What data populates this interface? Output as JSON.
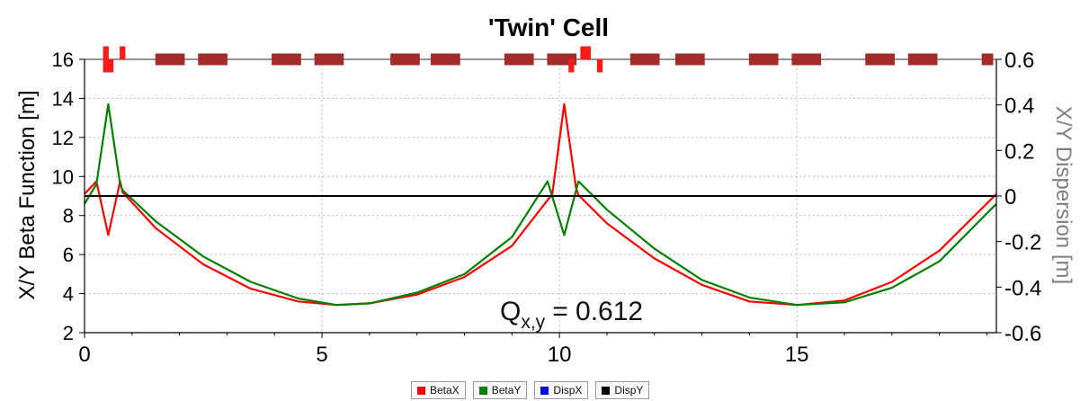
{
  "chart_data": {
    "type": "line",
    "title": "'Twin' Cell",
    "ylabel": "X/Y Beta Function [m]",
    "y2label": "X/Y Dispersion [m]",
    "annotation": {
      "prefix": "Q",
      "subscript": "x,y",
      "value": "= 0.612"
    },
    "xlim": [
      0,
      19.2
    ],
    "ylim": [
      2,
      16
    ],
    "y2lim": [
      -0.6,
      0.6
    ],
    "xticks": [
      0,
      5,
      10,
      15
    ],
    "yticks": [
      2,
      4,
      6,
      8,
      10,
      12,
      14,
      16
    ],
    "y2ticks": [
      -0.6,
      -0.4,
      -0.2,
      0,
      0.2,
      0.4,
      0.6
    ],
    "y2ticklabels": [
      "-0.6",
      "-0.4",
      "-0.2",
      "0",
      "0.2",
      "0.4",
      "0.6"
    ],
    "grid": true,
    "legend_position": "bottom-center",
    "series": [
      {
        "name": "BetaX",
        "color": "#ff0000",
        "axis": "left",
        "x": [
          0,
          0.25,
          0.5,
          0.75,
          0.8,
          1.5,
          2.5,
          3.5,
          4.5,
          5.3,
          6,
          7,
          8,
          9,
          9.85,
          10.1,
          10.35,
          10.4,
          11,
          12,
          13,
          14,
          15,
          16,
          17,
          18,
          19.2
        ],
        "y": [
          9.1,
          9.75,
          7.0,
          9.75,
          9.2,
          7.35,
          5.5,
          4.25,
          3.6,
          3.42,
          3.5,
          3.95,
          4.85,
          6.45,
          9.1,
          13.7,
          9.4,
          9.05,
          7.6,
          5.8,
          4.45,
          3.6,
          3.42,
          3.65,
          4.6,
          6.2,
          9.1
        ]
      },
      {
        "name": "BetaY",
        "color": "#008000",
        "axis": "left",
        "x": [
          0,
          0.25,
          0.5,
          0.75,
          0.8,
          1.5,
          2.5,
          3.5,
          4.5,
          5.3,
          6,
          7,
          8,
          9,
          9.75,
          10.1,
          10.4,
          11,
          12,
          13,
          14,
          15,
          16,
          17,
          18,
          19.2
        ],
        "y": [
          8.6,
          9.6,
          13.7,
          9.6,
          9.3,
          7.7,
          5.9,
          4.6,
          3.75,
          3.42,
          3.5,
          4.05,
          5.0,
          6.9,
          9.75,
          7.0,
          9.75,
          8.3,
          6.3,
          4.7,
          3.8,
          3.42,
          3.55,
          4.3,
          5.65,
          8.6
        ]
      },
      {
        "name": "DispX",
        "color": "#0000ff",
        "axis": "right",
        "x": [
          0,
          19.2
        ],
        "y": [
          0,
          0
        ]
      },
      {
        "name": "DispY",
        "color": "#000000",
        "axis": "right",
        "x": [
          0,
          19.2
        ],
        "y": [
          0,
          0
        ]
      }
    ],
    "lattice": [
      {
        "s": 0.45,
        "len": 0.1,
        "kind": "quad-f"
      },
      {
        "s": 0.5,
        "len": 0.2,
        "kind": "quad-d"
      },
      {
        "s": 0.8,
        "len": 0.1,
        "kind": "quad-f"
      },
      {
        "s": 1.8,
        "len": 0.6,
        "kind": "dipole"
      },
      {
        "s": 2.7,
        "len": 0.6,
        "kind": "dipole"
      },
      {
        "s": 4.25,
        "len": 0.6,
        "kind": "dipole"
      },
      {
        "s": 5.15,
        "len": 0.6,
        "kind": "dipole"
      },
      {
        "s": 6.75,
        "len": 0.6,
        "kind": "dipole"
      },
      {
        "s": 7.6,
        "len": 0.6,
        "kind": "dipole"
      },
      {
        "s": 9.15,
        "len": 0.6,
        "kind": "dipole"
      },
      {
        "s": 10.05,
        "len": 0.6,
        "kind": "dipole"
      },
      {
        "s": 10.25,
        "len": 0.1,
        "kind": "quad-d"
      },
      {
        "s": 10.55,
        "len": 0.2,
        "kind": "quad-f"
      },
      {
        "s": 10.85,
        "len": 0.1,
        "kind": "quad-d"
      },
      {
        "s": 11.8,
        "len": 0.6,
        "kind": "dipole"
      },
      {
        "s": 12.75,
        "len": 0.6,
        "kind": "dipole"
      },
      {
        "s": 14.3,
        "len": 0.6,
        "kind": "dipole"
      },
      {
        "s": 15.2,
        "len": 0.6,
        "kind": "dipole"
      },
      {
        "s": 16.75,
        "len": 0.6,
        "kind": "dipole"
      },
      {
        "s": 17.65,
        "len": 0.6,
        "kind": "dipole"
      },
      {
        "s": 19.2,
        "len": 0.6,
        "kind": "dipole"
      },
      {
        "s": 20.1,
        "len": 0.6,
        "kind": "dipole"
      }
    ]
  },
  "legend": [
    {
      "label": "BetaX",
      "color": "#ff0000"
    },
    {
      "label": "BetaY",
      "color": "#008000"
    },
    {
      "label": "DispX",
      "color": "#0000ff"
    },
    {
      "label": "DispY",
      "color": "#000000"
    }
  ]
}
